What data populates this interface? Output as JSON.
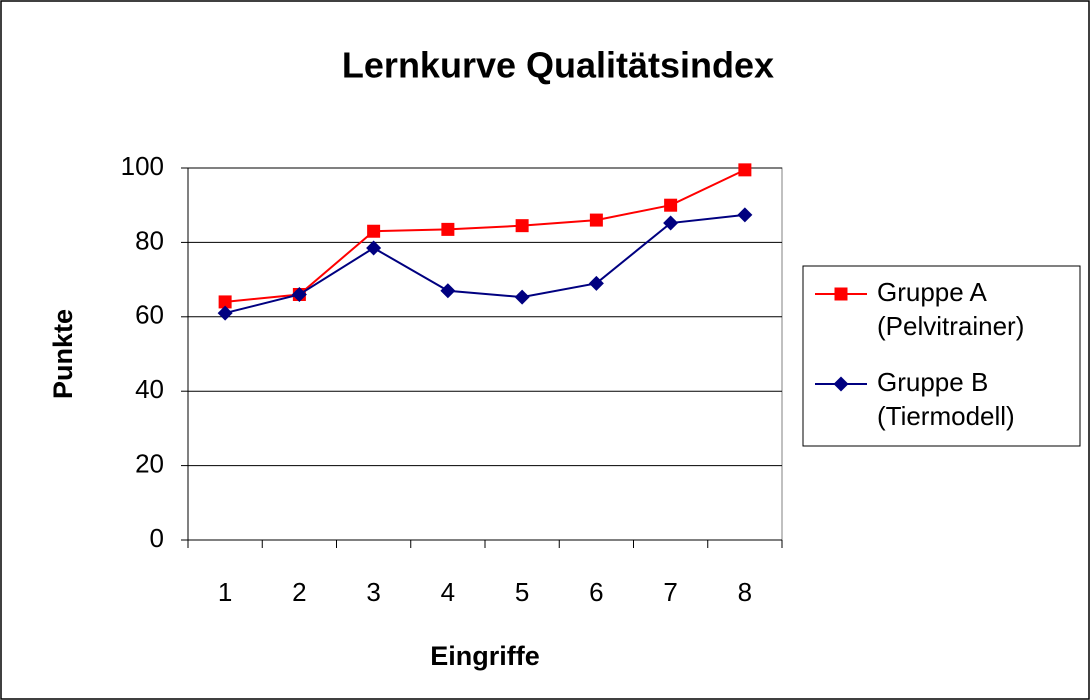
{
  "chart_data": {
    "type": "line",
    "title": "Lernkurve Qualitätsindex",
    "x_label": "Eingriffe",
    "y_label": "Punkte",
    "categories": [
      "1",
      "2",
      "3",
      "4",
      "5",
      "6",
      "7",
      "8"
    ],
    "series": [
      {
        "name": "Gruppe A (Pelvitrainer)",
        "color": "#ff0000",
        "marker": "square",
        "values": [
          64,
          66,
          83,
          83.5,
          84.5,
          86,
          90,
          99.5
        ]
      },
      {
        "name": "Gruppe B (Tiermodell)",
        "color": "#000080",
        "marker": "diamond",
        "values": [
          61,
          66,
          78.5,
          67,
          65.3,
          69,
          85.2,
          87.4
        ]
      }
    ],
    "ylim": [
      0,
      100
    ],
    "yticks": [
      0,
      20,
      40,
      60,
      80,
      100
    ],
    "grid": true,
    "legend": "right"
  }
}
